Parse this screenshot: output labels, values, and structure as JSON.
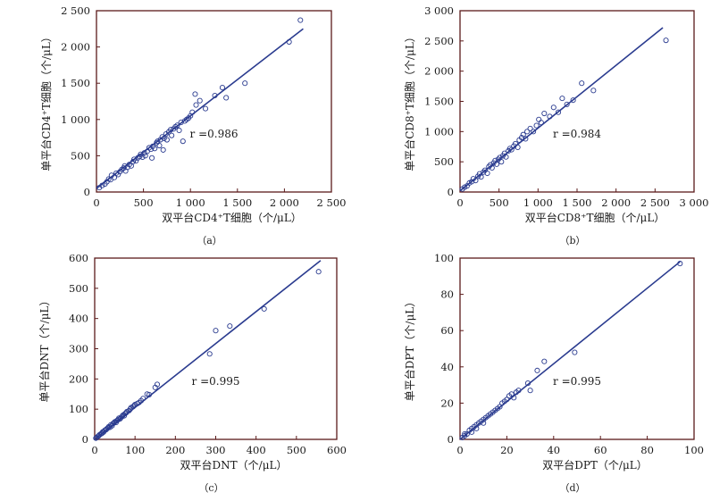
{
  "chart_data": [
    {
      "type": "scatter",
      "panel_label": "（a）",
      "xlabel": "双平台CD4⁺T细胞（个/μL）",
      "ylabel": "单平台CD4⁺T细胞（个/μL）",
      "x_ticks": [
        "0",
        "500",
        "1 000",
        "1 500",
        "2 000",
        "2 500"
      ],
      "y_ticks": [
        "0",
        "500",
        "1 000",
        "1 500",
        "2 000",
        "2 500"
      ],
      "xlim": [
        0,
        2500
      ],
      "ylim": [
        0,
        2500
      ],
      "annotation": "r =0.986",
      "fit_line": [
        [
          0,
          50
        ],
        [
          2200,
          2250
        ]
      ],
      "points": [
        [
          30,
          60
        ],
        [
          60,
          90
        ],
        [
          90,
          110
        ],
        [
          110,
          140
        ],
        [
          130,
          180
        ],
        [
          150,
          170
        ],
        [
          160,
          230
        ],
        [
          190,
          200
        ],
        [
          210,
          260
        ],
        [
          230,
          240
        ],
        [
          250,
          280
        ],
        [
          270,
          310
        ],
        [
          290,
          330
        ],
        [
          300,
          360
        ],
        [
          310,
          290
        ],
        [
          330,
          340
        ],
        [
          350,
          380
        ],
        [
          370,
          360
        ],
        [
          390,
          420
        ],
        [
          400,
          450
        ],
        [
          420,
          430
        ],
        [
          440,
          470
        ],
        [
          460,
          490
        ],
        [
          470,
          520
        ],
        [
          490,
          480
        ],
        [
          510,
          540
        ],
        [
          520,
          500
        ],
        [
          540,
          560
        ],
        [
          560,
          610
        ],
        [
          580,
          590
        ],
        [
          590,
          470
        ],
        [
          600,
          630
        ],
        [
          620,
          600
        ],
        [
          640,
          680
        ],
        [
          650,
          700
        ],
        [
          670,
          640
        ],
        [
          680,
          720
        ],
        [
          700,
          760
        ],
        [
          710,
          580
        ],
        [
          720,
          740
        ],
        [
          740,
          800
        ],
        [
          750,
          720
        ],
        [
          770,
          830
        ],
        [
          790,
          860
        ],
        [
          800,
          780
        ],
        [
          820,
          870
        ],
        [
          840,
          900
        ],
        [
          860,
          920
        ],
        [
          880,
          850
        ],
        [
          900,
          960
        ],
        [
          920,
          700
        ],
        [
          940,
          980
        ],
        [
          960,
          1000
        ],
        [
          980,
          1020
        ],
        [
          1000,
          1050
        ],
        [
          1020,
          1100
        ],
        [
          1050,
          1350
        ],
        [
          1060,
          1200
        ],
        [
          1100,
          1260
        ],
        [
          1160,
          1150
        ],
        [
          1260,
          1330
        ],
        [
          1340,
          1440
        ],
        [
          1380,
          1300
        ],
        [
          1580,
          1500
        ],
        [
          2050,
          2070
        ],
        [
          2170,
          2370
        ]
      ]
    },
    {
      "type": "scatter",
      "panel_label": "（b）",
      "xlabel": "双平台CD8⁺T细胞（个/μL）",
      "ylabel": "单平台CD8⁺T细胞（个/μL）",
      "x_ticks": [
        "0",
        "500",
        "1 000",
        "1 500",
        "2 000",
        "2 500",
        "3 000"
      ],
      "y_ticks": [
        "0",
        "500",
        "1 000",
        "1 500",
        "2 000",
        "2 500",
        "3 000"
      ],
      "xlim": [
        0,
        3000
      ],
      "ylim": [
        0,
        3000
      ],
      "annotation": "r =0.984",
      "fit_line": [
        [
          0,
          20
        ],
        [
          2600,
          2720
        ]
      ],
      "points": [
        [
          30,
          50
        ],
        [
          60,
          80
        ],
        [
          90,
          100
        ],
        [
          120,
          150
        ],
        [
          150,
          170
        ],
        [
          170,
          220
        ],
        [
          200,
          190
        ],
        [
          230,
          260
        ],
        [
          250,
          300
        ],
        [
          270,
          250
        ],
        [
          300,
          330
        ],
        [
          320,
          360
        ],
        [
          350,
          310
        ],
        [
          370,
          420
        ],
        [
          390,
          450
        ],
        [
          410,
          400
        ],
        [
          430,
          480
        ],
        [
          450,
          520
        ],
        [
          470,
          460
        ],
        [
          490,
          540
        ],
        [
          510,
          570
        ],
        [
          530,
          500
        ],
        [
          550,
          600
        ],
        [
          570,
          640
        ],
        [
          590,
          580
        ],
        [
          620,
          680
        ],
        [
          640,
          720
        ],
        [
          660,
          700
        ],
        [
          690,
          760
        ],
        [
          710,
          800
        ],
        [
          740,
          740
        ],
        [
          760,
          860
        ],
        [
          790,
          900
        ],
        [
          810,
          950
        ],
        [
          840,
          880
        ],
        [
          860,
          1000
        ],
        [
          900,
          1050
        ],
        [
          940,
          1000
        ],
        [
          980,
          1100
        ],
        [
          1010,
          1200
        ],
        [
          1040,
          1150
        ],
        [
          1080,
          1300
        ],
        [
          1150,
          1250
        ],
        [
          1200,
          1400
        ],
        [
          1260,
          1320
        ],
        [
          1310,
          1550
        ],
        [
          1370,
          1450
        ],
        [
          1450,
          1520
        ],
        [
          1560,
          1800
        ],
        [
          1710,
          1680
        ],
        [
          2640,
          2510
        ]
      ]
    },
    {
      "type": "scatter",
      "panel_label": "（c）",
      "xlabel": "双平台DNT（个/μL）",
      "ylabel": "单平台DNT（个/μL）",
      "x_ticks": [
        "0",
        "100",
        "200",
        "300",
        "400",
        "500",
        "600"
      ],
      "y_ticks": [
        "0",
        "100",
        "200",
        "300",
        "400",
        "500",
        "600"
      ],
      "xlim": [
        0,
        600
      ],
      "ylim": [
        0,
        600
      ],
      "annotation": "r =0.995",
      "fit_line": [
        [
          0,
          0
        ],
        [
          560,
          592
        ]
      ],
      "points": [
        [
          3,
          4
        ],
        [
          5,
          6
        ],
        [
          8,
          10
        ],
        [
          10,
          12
        ],
        [
          12,
          15
        ],
        [
          15,
          18
        ],
        [
          18,
          20
        ],
        [
          20,
          25
        ],
        [
          22,
          24
        ],
        [
          25,
          30
        ],
        [
          28,
          32
        ],
        [
          30,
          35
        ],
        [
          33,
          38
        ],
        [
          35,
          42
        ],
        [
          38,
          40
        ],
        [
          40,
          48
        ],
        [
          43,
          45
        ],
        [
          45,
          52
        ],
        [
          48,
          55
        ],
        [
          50,
          58
        ],
        [
          53,
          56
        ],
        [
          55,
          62
        ],
        [
          58,
          65
        ],
        [
          60,
          70
        ],
        [
          63,
          68
        ],
        [
          65,
          72
        ],
        [
          68,
          76
        ],
        [
          70,
          80
        ],
        [
          73,
          78
        ],
        [
          75,
          85
        ],
        [
          78,
          88
        ],
        [
          80,
          92
        ],
        [
          85,
          95
        ],
        [
          88,
          100
        ],
        [
          90,
          105
        ],
        [
          95,
          108
        ],
        [
          98,
          112
        ],
        [
          100,
          115
        ],
        [
          105,
          118
        ],
        [
          110,
          122
        ],
        [
          115,
          128
        ],
        [
          120,
          135
        ],
        [
          130,
          150
        ],
        [
          135,
          148
        ],
        [
          150,
          172
        ],
        [
          155,
          182
        ],
        [
          285,
          283
        ],
        [
          300,
          360
        ],
        [
          335,
          375
        ],
        [
          420,
          432
        ],
        [
          555,
          555
        ]
      ]
    },
    {
      "type": "scatter",
      "panel_label": "（d）",
      "xlabel": "双平台DPT（个/μL）",
      "ylabel": "单平台DPT（个/μL）",
      "x_ticks": [
        "0",
        "20",
        "40",
        "60",
        "80",
        "100"
      ],
      "y_ticks": [
        "0",
        "20",
        "40",
        "60",
        "80",
        "100"
      ],
      "xlim": [
        0,
        100
      ],
      "ylim": [
        0,
        100
      ],
      "annotation": "r =0.995",
      "fit_line": [
        [
          0,
          0
        ],
        [
          94,
          98
        ]
      ],
      "points": [
        [
          1,
          1
        ],
        [
          2,
          2
        ],
        [
          2,
          3
        ],
        [
          3,
          3
        ],
        [
          4,
          5
        ],
        [
          5,
          4
        ],
        [
          5,
          6
        ],
        [
          6,
          7
        ],
        [
          7,
          6
        ],
        [
          7,
          8
        ],
        [
          8,
          9
        ],
        [
          9,
          10
        ],
        [
          10,
          11
        ],
        [
          10,
          9
        ],
        [
          11,
          12
        ],
        [
          12,
          13
        ],
        [
          13,
          14
        ],
        [
          14,
          15
        ],
        [
          15,
          16
        ],
        [
          16,
          17
        ],
        [
          17,
          18
        ],
        [
          18,
          20
        ],
        [
          19,
          21
        ],
        [
          20,
          22
        ],
        [
          21,
          24
        ],
        [
          22,
          25
        ],
        [
          23,
          23
        ],
        [
          24,
          26
        ],
        [
          25,
          27
        ],
        [
          29,
          31
        ],
        [
          30,
          27
        ],
        [
          33,
          38
        ],
        [
          36,
          43
        ],
        [
          49,
          48
        ],
        [
          94,
          97
        ]
      ]
    }
  ]
}
